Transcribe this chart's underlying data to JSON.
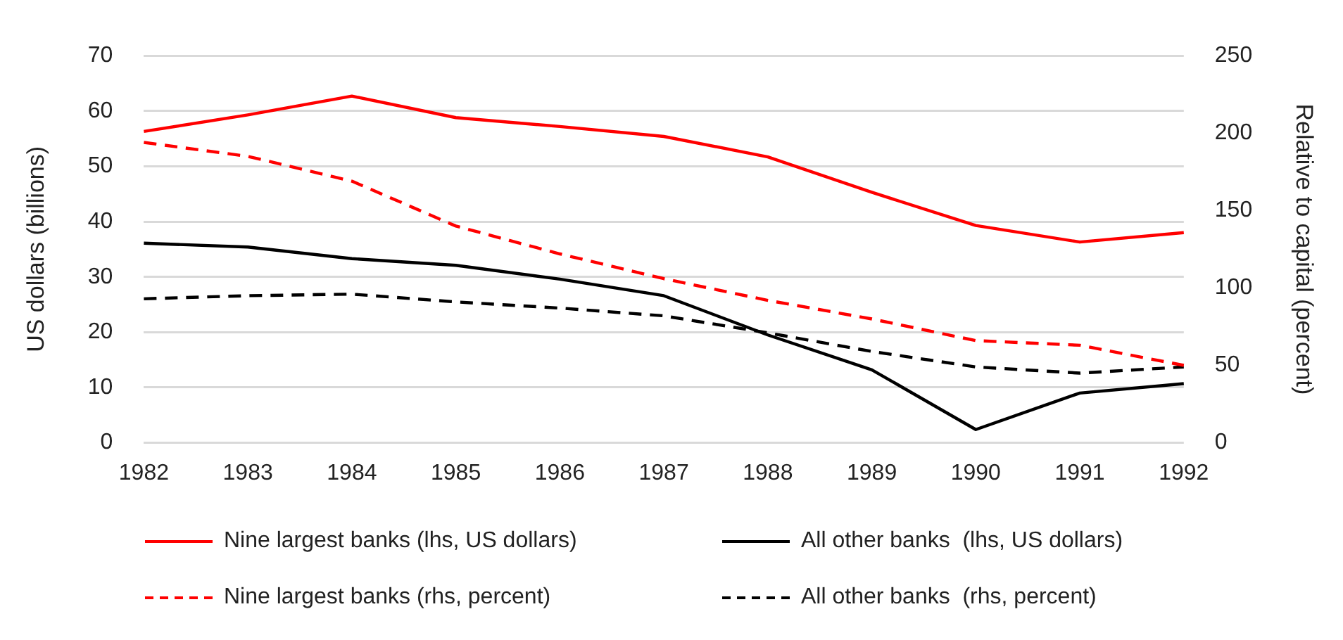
{
  "chart_data": {
    "type": "line",
    "categories": [
      "1982",
      "1983",
      "1984",
      "1985",
      "1986",
      "1987",
      "1988",
      "1989",
      "1990",
      "1991",
      "1992"
    ],
    "ylabel": "US dollars (billions)",
    "y2label": "Relative to capital (percent)",
    "ylim": [
      0,
      70
    ],
    "yticks": [
      0,
      10,
      20,
      30,
      40,
      50,
      60,
      70
    ],
    "y2lim": [
      0,
      250
    ],
    "y2ticks": [
      0,
      50,
      100,
      150,
      200,
      250
    ],
    "grid": "y",
    "legend": "bottom",
    "marker": "none",
    "series": [
      {
        "name": "Nine largest banks (lhs, US dollars)",
        "color": "#ff0000",
        "line_style": "solid",
        "values": [
          56.3,
          59.3,
          62.7,
          58.8,
          57.2,
          55.4,
          51.7,
          45.3,
          39.3,
          36.3,
          38.0
        ]
      },
      {
        "name": "All other banks  (lhs, US dollars)",
        "color": "#000000",
        "line_style": "solid",
        "values": [
          36.1,
          35.4,
          33.3,
          32.1,
          29.6,
          26.6,
          19.5,
          13.2,
          2.4,
          9.0,
          10.7
        ]
      },
      {
        "name": "Nine largest banks (rhs, percent)",
        "color": "#ff0000",
        "line_style": "dashed",
        "axis": "y2",
        "values": [
          194,
          185,
          169,
          140,
          122,
          106,
          92,
          80,
          66,
          63,
          50
        ]
      },
      {
        "name": "All other banks  (rhs, percent)",
        "color": "#000000",
        "line_style": "dashed",
        "axis": "y2",
        "values": [
          93,
          95,
          96,
          91,
          87,
          82,
          71,
          59,
          49,
          45,
          49
        ]
      }
    ]
  }
}
